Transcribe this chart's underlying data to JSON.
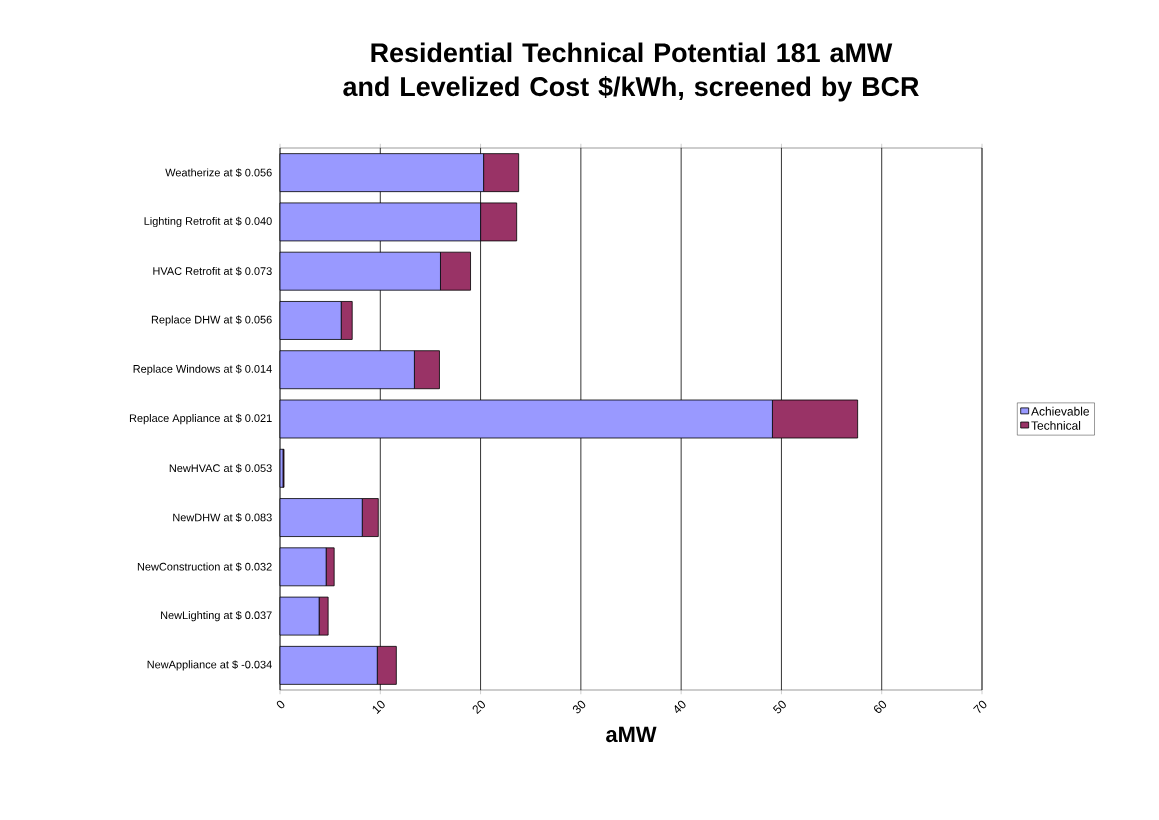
{
  "chart_data": {
    "type": "bar",
    "orientation": "horizontal",
    "stacked": true,
    "title": "Residential Technical Potential 181 aMW and Levelized Cost $/kWh, screened by BCR",
    "xlabel": "aMW",
    "categories": [
      "Weatherize at $ 0.056",
      "Lighting Retrofit at $ 0.040",
      "HVAC Retrofit at $ 0.073",
      "Replace DHW at $ 0.056",
      "Replace Windows at $ 0.014",
      "Replace Appliance at $ 0.021",
      "NewHVAC at $ 0.053",
      "NewDHW at $ 0.083",
      "NewConstruction at $ 0.032",
      "NewLighting at $ 0.037",
      "NewAppliance at $ -0.034"
    ],
    "series": [
      {
        "name": "Achievable",
        "color": "#9999ff",
        "values": [
          20.3,
          20.0,
          16.0,
          6.1,
          13.4,
          49.1,
          0.3,
          8.2,
          4.6,
          3.9,
          9.7
        ]
      },
      {
        "name": "Technical",
        "color": "#993366",
        "values": [
          3.5,
          3.6,
          3.0,
          1.1,
          2.5,
          8.5,
          0.1,
          1.6,
          0.8,
          0.9,
          1.9
        ]
      }
    ],
    "xlim": [
      0,
      70
    ],
    "xticks": [
      0,
      10,
      20,
      30,
      40,
      50,
      60,
      70
    ],
    "grid": "x",
    "legend": "right"
  }
}
